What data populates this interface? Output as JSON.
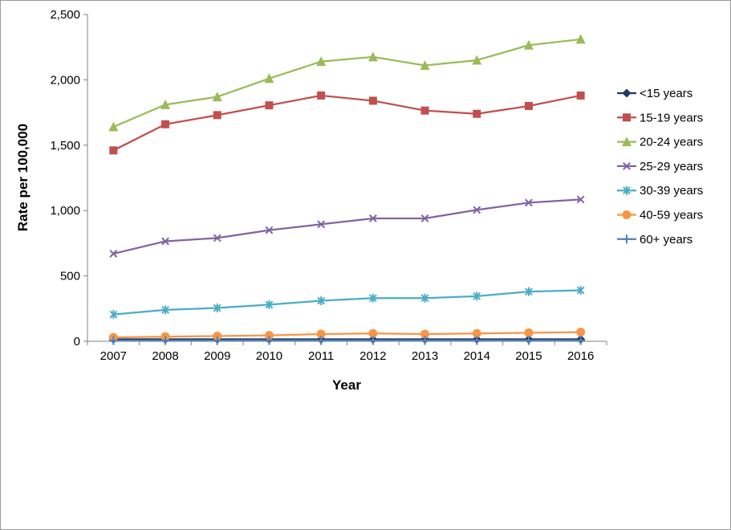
{
  "chart_data": {
    "type": "line",
    "title": "",
    "xlabel": "Year",
    "ylabel": "Rate per 100,000",
    "x": [
      2007,
      2008,
      2009,
      2010,
      2011,
      2012,
      2013,
      2014,
      2015,
      2016
    ],
    "ylim": [
      0,
      2500
    ],
    "yticks": [
      0,
      500,
      1000,
      1500,
      2000,
      2500
    ],
    "ytick_labels": [
      "0",
      "500",
      "1,000",
      "1,500",
      "2,000",
      "2,500"
    ],
    "grid": false,
    "legend_position": "right",
    "axis_color": "#808080",
    "series": [
      {
        "name": "<15 years",
        "color": "#1F3864",
        "marker": "diamond",
        "values": [
          15,
          15,
          15,
          15,
          15,
          15,
          15,
          15,
          15,
          15
        ]
      },
      {
        "name": "15-19 years",
        "color": "#C0504D",
        "marker": "square",
        "values": [
          1460,
          1660,
          1730,
          1805,
          1880,
          1840,
          1765,
          1740,
          1800,
          1880
        ]
      },
      {
        "name": "20-24 years",
        "color": "#9BBB59",
        "marker": "triangle",
        "values": [
          1640,
          1810,
          1870,
          2010,
          2140,
          2175,
          2110,
          2150,
          2265,
          2310
        ]
      },
      {
        "name": "25-29 years",
        "color": "#8064A2",
        "marker": "x",
        "values": [
          670,
          765,
          790,
          850,
          895,
          940,
          940,
          1005,
          1060,
          1085
        ]
      },
      {
        "name": "30-39 years",
        "color": "#4BACC6",
        "marker": "asterisk",
        "values": [
          205,
          240,
          255,
          280,
          310,
          330,
          330,
          345,
          380,
          390
        ]
      },
      {
        "name": "40-59 years",
        "color": "#F79646",
        "marker": "circle",
        "values": [
          30,
          35,
          40,
          45,
          55,
          60,
          55,
          60,
          65,
          70
        ]
      },
      {
        "name": "60+ years",
        "color": "#4F81BD",
        "marker": "plus",
        "values": [
          5,
          5,
          5,
          6,
          6,
          6,
          6,
          6,
          6,
          6
        ]
      }
    ]
  }
}
